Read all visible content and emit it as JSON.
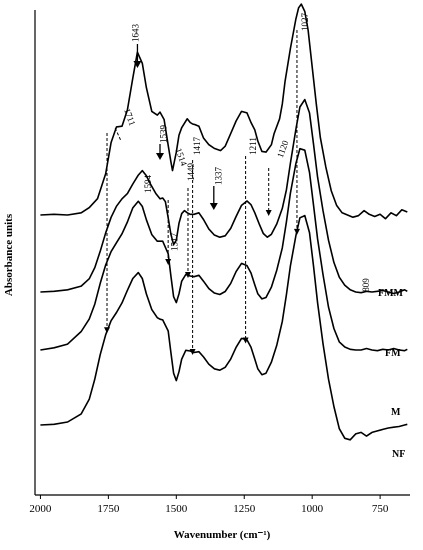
{
  "chart_data": {
    "type": "line",
    "title": "",
    "xlabel": "Wavenumber (cm⁻¹)",
    "ylabel": "Absorbance units",
    "xlim": [
      2020,
      640
    ],
    "x_reversed": true,
    "x_ticks": [
      2000,
      1750,
      1500,
      1250,
      1000,
      750
    ],
    "y_ticks_shown": false,
    "grid": false,
    "series": [
      {
        "name": "FMM",
        "x": [
          2000,
          1950,
          1900,
          1850,
          1820,
          1790,
          1760,
          1740,
          1720,
          1700,
          1680,
          1660,
          1643,
          1625,
          1610,
          1590,
          1570,
          1560,
          1545,
          1530,
          1520,
          1514,
          1500,
          1490,
          1480,
          1470,
          1460,
          1449,
          1440,
          1430,
          1417,
          1400,
          1380,
          1360,
          1337,
          1320,
          1300,
          1280,
          1260,
          1240,
          1225,
          1211,
          1200,
          1185,
          1170,
          1150,
          1140,
          1120,
          1110,
          1100,
          1080,
          1060,
          1050,
          1040,
          1027,
          1015,
          1000,
          985,
          970,
          950,
          930,
          910,
          890,
          870,
          850,
          830,
          809,
          790,
          770,
          750,
          730,
          710,
          690,
          670,
          650
        ],
        "y": [
          0.0,
          0.01,
          0.0,
          0.03,
          0.1,
          0.22,
          0.56,
          0.98,
          1.19,
          1.2,
          1.42,
          1.85,
          2.2,
          2.05,
          1.72,
          1.4,
          1.35,
          1.39,
          1.29,
          0.94,
          0.72,
          0.6,
          0.85,
          1.08,
          1.18,
          1.24,
          1.3,
          1.25,
          1.23,
          1.22,
          1.2,
          1.04,
          0.95,
          0.9,
          0.87,
          0.93,
          1.1,
          1.27,
          1.4,
          1.38,
          1.25,
          1.15,
          1.0,
          0.86,
          0.85,
          0.95,
          1.1,
          1.3,
          1.5,
          1.8,
          2.25,
          2.65,
          2.8,
          2.85,
          2.75,
          2.5,
          2.0,
          1.5,
          1.05,
          0.65,
          0.33,
          0.13,
          0.03,
          0.0,
          -0.03,
          -0.01,
          0.06,
          0.01,
          -0.02,
          0.01,
          -0.05,
          0.03,
          -0.01,
          0.07,
          0.04
        ]
      },
      {
        "name": "FM",
        "x": [
          2000,
          1950,
          1900,
          1850,
          1820,
          1800,
          1780,
          1760,
          1740,
          1720,
          1700,
          1680,
          1660,
          1640,
          1625,
          1610,
          1594,
          1575,
          1560,
          1550,
          1540,
          1530,
          1520,
          1510,
          1500,
          1490,
          1480,
          1470,
          1460,
          1449,
          1435,
          1417,
          1400,
          1380,
          1360,
          1340,
          1320,
          1300,
          1280,
          1260,
          1240,
          1225,
          1211,
          1195,
          1180,
          1165,
          1150,
          1130,
          1110,
          1095,
          1080,
          1060,
          1045,
          1027,
          1010,
          995,
          980,
          960,
          940,
          920,
          900,
          880,
          860,
          840,
          820,
          800,
          780,
          760,
          740,
          720,
          700,
          680,
          660,
          650
        ],
        "y": [
          0.0,
          0.01,
          0.03,
          0.08,
          0.18,
          0.33,
          0.55,
          0.8,
          1.01,
          1.16,
          1.26,
          1.33,
          1.46,
          1.58,
          1.64,
          1.57,
          1.45,
          1.33,
          1.26,
          1.27,
          1.22,
          1.0,
          0.78,
          0.64,
          0.7,
          0.93,
          1.06,
          1.1,
          1.07,
          1.05,
          1.05,
          1.07,
          0.98,
          0.85,
          0.77,
          0.74,
          0.76,
          0.86,
          1.02,
          1.17,
          1.23,
          1.18,
          1.07,
          0.92,
          0.79,
          0.74,
          0.78,
          0.92,
          1.13,
          1.38,
          1.74,
          2.2,
          2.5,
          2.6,
          2.42,
          2.0,
          1.55,
          1.1,
          0.7,
          0.4,
          0.2,
          0.09,
          0.03,
          0.0,
          -0.01,
          0.01,
          0.0,
          0.01,
          0.02,
          0.0,
          -0.02,
          0.0,
          0.03,
          0.01
        ]
      },
      {
        "name": "M",
        "x": [
          2000,
          1950,
          1900,
          1850,
          1820,
          1800,
          1780,
          1760,
          1740,
          1720,
          1700,
          1680,
          1660,
          1640,
          1625,
          1610,
          1590,
          1570,
          1560,
          1550,
          1530,
          1520,
          1510,
          1500,
          1490,
          1480,
          1465,
          1449,
          1435,
          1417,
          1400,
          1380,
          1360,
          1340,
          1320,
          1300,
          1280,
          1260,
          1240,
          1225,
          1211,
          1200,
          1185,
          1170,
          1150,
          1130,
          1110,
          1095,
          1080,
          1060,
          1045,
          1027,
          1010,
          995,
          980,
          960,
          940,
          920,
          900,
          880,
          860,
          840,
          820,
          800,
          780,
          760,
          740,
          720,
          700,
          680,
          660,
          650
        ],
        "y": [
          0.0,
          0.03,
          0.08,
          0.25,
          0.42,
          0.62,
          0.9,
          1.15,
          1.33,
          1.45,
          1.57,
          1.73,
          1.92,
          2.01,
          1.94,
          1.76,
          1.56,
          1.47,
          1.47,
          1.47,
          1.3,
          1.0,
          0.72,
          0.64,
          0.76,
          0.93,
          1.02,
          1.0,
          0.99,
          1.01,
          0.93,
          0.83,
          0.77,
          0.75,
          0.79,
          0.9,
          1.06,
          1.17,
          1.14,
          1.04,
          0.88,
          0.76,
          0.69,
          0.71,
          0.85,
          1.08,
          1.38,
          1.73,
          2.12,
          2.52,
          2.72,
          2.7,
          2.4,
          1.96,
          1.5,
          1.02,
          0.58,
          0.29,
          0.11,
          0.04,
          0.01,
          0.0,
          0.0,
          0.02,
          0.0,
          -0.01,
          0.01,
          0.0,
          0.02,
          0.0,
          -0.01,
          0.01
        ]
      },
      {
        "name": "NF",
        "x": [
          2000,
          1950,
          1900,
          1850,
          1820,
          1800,
          1780,
          1760,
          1740,
          1720,
          1700,
          1680,
          1660,
          1640,
          1625,
          1610,
          1590,
          1570,
          1560,
          1550,
          1530,
          1520,
          1510,
          1500,
          1490,
          1480,
          1465,
          1449,
          1435,
          1417,
          1400,
          1380,
          1360,
          1340,
          1320,
          1300,
          1280,
          1260,
          1240,
          1225,
          1211,
          1200,
          1185,
          1170,
          1150,
          1130,
          1110,
          1095,
          1080,
          1060,
          1045,
          1027,
          1010,
          995,
          980,
          960,
          940,
          920,
          900,
          880,
          860,
          840,
          820,
          800,
          780,
          760,
          740,
          720,
          700,
          680,
          660,
          650
        ],
        "y": [
          0.0,
          0.01,
          0.04,
          0.15,
          0.35,
          0.62,
          0.95,
          1.22,
          1.41,
          1.52,
          1.65,
          1.82,
          1.98,
          2.06,
          1.98,
          1.77,
          1.56,
          1.45,
          1.43,
          1.42,
          1.27,
          0.98,
          0.7,
          0.6,
          0.72,
          0.89,
          1.01,
          1.0,
          0.98,
          0.99,
          0.92,
          0.82,
          0.76,
          0.74,
          0.78,
          0.89,
          1.05,
          1.17,
          1.15,
          1.05,
          0.89,
          0.76,
          0.68,
          0.7,
          0.85,
          1.08,
          1.4,
          1.76,
          2.15,
          2.56,
          2.8,
          2.83,
          2.6,
          2.15,
          1.65,
          1.1,
          0.62,
          0.25,
          -0.05,
          -0.18,
          -0.2,
          -0.12,
          -0.1,
          -0.15,
          -0.1,
          -0.08,
          -0.06,
          -0.04,
          -0.03,
          -0.02,
          0.0,
          0.01
        ]
      }
    ],
    "annotations": [
      {
        "text": "1711",
        "x": 1711
      },
      {
        "text": "1643",
        "x": 1643
      },
      {
        "text": "1594",
        "x": 1594
      },
      {
        "text": "1539",
        "x": 1539
      },
      {
        "text": "1517",
        "x": 1517
      },
      {
        "text": "1514",
        "x": 1514
      },
      {
        "text": "1449",
        "x": 1449
      },
      {
        "text": "1417",
        "x": 1417
      },
      {
        "text": "1337",
        "x": 1337
      },
      {
        "text": "1211",
        "x": 1211
      },
      {
        "text": "1120",
        "x": 1120
      },
      {
        "text": "1027",
        "x": 1027
      },
      {
        "text": "809",
        "x": 809
      }
    ]
  }
}
